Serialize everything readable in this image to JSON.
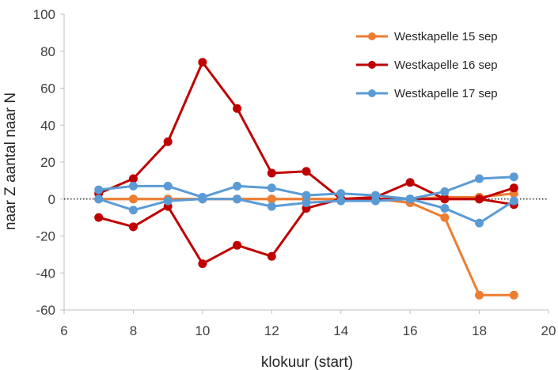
{
  "chart_data": {
    "type": "line",
    "title": "",
    "xlabel": "klokuur (start)",
    "ylabel": "naar Z aantal naar N",
    "xlim": [
      6,
      20
    ],
    "ylim": [
      -60,
      100
    ],
    "xticks": [
      6,
      8,
      10,
      12,
      14,
      16,
      18,
      20
    ],
    "yticks": [
      -60,
      -40,
      -20,
      0,
      20,
      40,
      60,
      80,
      100
    ],
    "grid": false,
    "zero_line": "dotted",
    "legend": "top-right",
    "series": [
      {
        "name": "Westkapelle 15 sep",
        "color": "#ED7D31",
        "lines": [
          {
            "x": [
              7,
              8,
              9,
              10,
              11,
              12,
              13,
              14,
              15,
              16,
              17,
              18,
              19
            ],
            "y": [
              0,
              0,
              0,
              0,
              0,
              0,
              0,
              0,
              0,
              0,
              1,
              1,
              3
            ]
          },
          {
            "x": [
              7,
              8,
              9,
              10,
              11,
              12,
              13,
              14,
              15,
              16,
              17,
              18,
              19
            ],
            "y": [
              0,
              0,
              0,
              0,
              0,
              0,
              0,
              0,
              0,
              -2,
              -10,
              -52,
              -52
            ]
          }
        ]
      },
      {
        "name": "Westkapelle 16 sep",
        "color": "#C00000",
        "lines": [
          {
            "x": [
              7,
              8,
              9,
              10,
              11,
              12,
              13,
              14,
              15,
              16,
              17,
              18,
              19
            ],
            "y": [
              3,
              11,
              31,
              74,
              49,
              14,
              15,
              0,
              1,
              9,
              0,
              0,
              6
            ]
          },
          {
            "x": [
              7,
              8,
              9,
              10,
              11,
              12,
              13,
              14,
              15,
              16,
              17,
              18,
              19
            ],
            "y": [
              -10,
              -15,
              -4,
              -35,
              -25,
              -31,
              -5,
              0,
              0,
              0,
              0,
              0,
              -3
            ]
          }
        ]
      },
      {
        "name": "Westkapelle 17 sep",
        "color": "#5B9BD5",
        "lines": [
          {
            "x": [
              7,
              8,
              9,
              10,
              11,
              12,
              13,
              14,
              15,
              16,
              17,
              18,
              19
            ],
            "y": [
              5,
              7,
              7,
              1,
              7,
              6,
              2,
              3,
              2,
              0,
              4,
              11,
              12
            ]
          },
          {
            "x": [
              7,
              8,
              9,
              10,
              11,
              12,
              13,
              14,
              15,
              16,
              17,
              18,
              19
            ],
            "y": [
              0,
              -6,
              -1,
              0,
              0,
              -4,
              -2,
              -1,
              -1,
              0,
              -5,
              -13,
              -1
            ]
          }
        ]
      }
    ]
  }
}
